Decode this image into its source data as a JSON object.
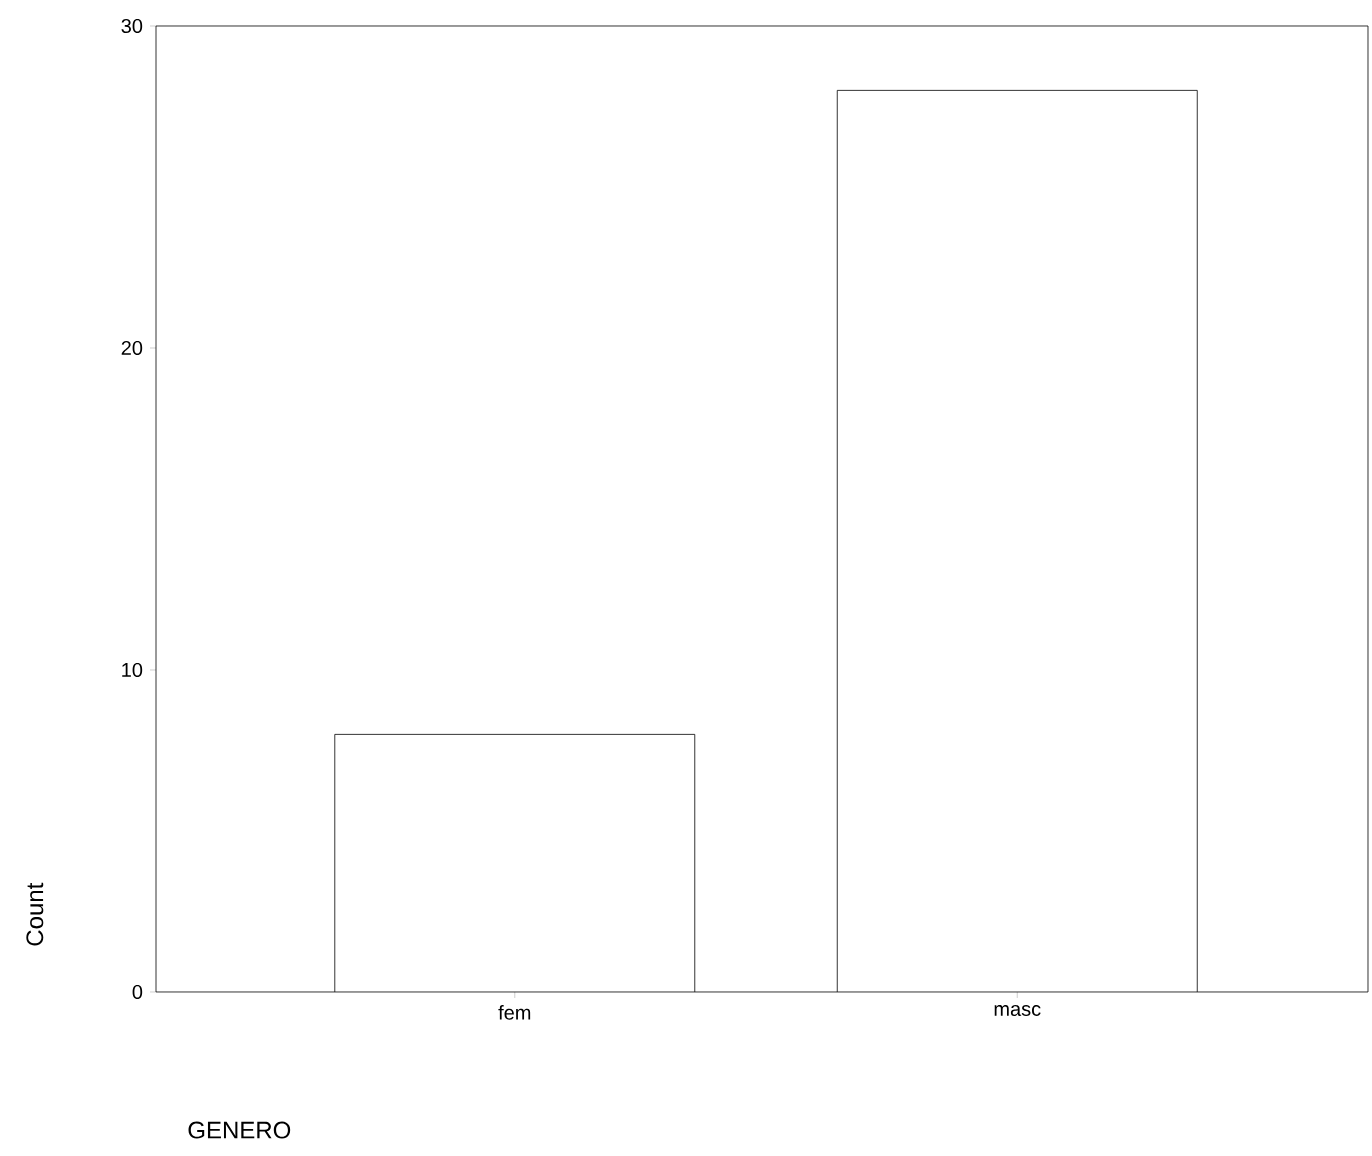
{
  "chart_data": {
    "type": "bar",
    "categories": [
      "fem",
      "masc"
    ],
    "values": [
      8,
      28
    ],
    "color": "#ffffff",
    "ylim": [
      0,
      30
    ],
    "yticks": [
      0,
      10,
      20,
      30
    ],
    "xlabel": "GENERO",
    "ylabel": "Count"
  }
}
